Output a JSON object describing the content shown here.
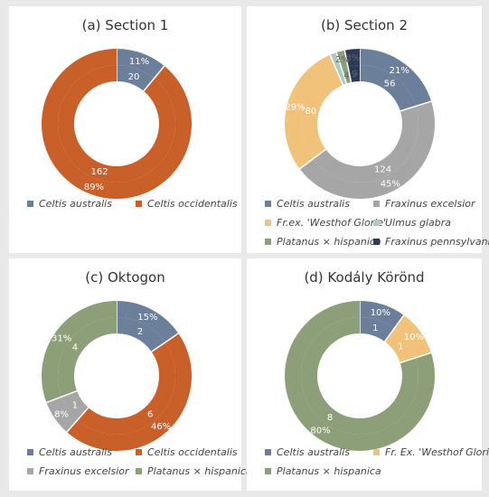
{
  "colors": {
    "Celtis australis": "#6b7f9a",
    "Celtis occidentalis": "#c95f29",
    "Fraxinus excelsior": "#a6a6a6",
    "Fr.ex. 'Westhof Glorie'": "#f0c27a",
    "Fr. Ex. 'Westhof Glorie'": "#f0c27a",
    "Ulmus glabra": "#a8cbc6",
    "Platanus × hispanica": "#8c9f78",
    "Fraxinus pennsylvanica": "#2c3a5a"
  },
  "chart_data": [
    {
      "type": "pie",
      "title": "(a) Section 1",
      "outer_labels": [
        "11%",
        "89%"
      ],
      "inner_labels": [
        "20",
        "162"
      ],
      "series": [
        {
          "name": "Celtis australis",
          "value": 20
        },
        {
          "name": "Celtis occidentalis",
          "value": 162
        }
      ],
      "legend": [
        "Celtis australis",
        "Celtis occidentalis"
      ]
    },
    {
      "type": "pie",
      "title": "(b) Section 2",
      "outer_labels": [
        "21%",
        "45%",
        "29%",
        "2%",
        "3%"
      ],
      "inner_labels": [
        "56",
        "124",
        "80",
        "4",
        "9"
      ],
      "series": [
        {
          "name": "Celtis australis",
          "value": 56
        },
        {
          "name": "Fraxinus excelsior",
          "value": 124
        },
        {
          "name": "Fr.ex. 'Westhof Glorie'",
          "value": 80
        },
        {
          "name": "Ulmus glabra",
          "value": 4
        },
        {
          "name": "Platanus × hispanica",
          "value": 5
        },
        {
          "name": "Fraxinus pennsylvanica",
          "value": 9
        }
      ],
      "legend": [
        "Celtis australis",
        "Fraxinus excelsior",
        "Fr.ex. 'Westhof Glorie'",
        "Ulmus glabra",
        "Platanus × hispanica",
        "Fraxinus pennsylvanica"
      ]
    },
    {
      "type": "pie",
      "title": "(c) Oktogon",
      "outer_labels": [
        "15%",
        "46%",
        "8%",
        "31%"
      ],
      "inner_labels": [
        "2",
        "6",
        "1",
        "4"
      ],
      "series": [
        {
          "name": "Celtis australis",
          "value": 2
        },
        {
          "name": "Celtis occidentalis",
          "value": 6
        },
        {
          "name": "Fraxinus excelsior",
          "value": 1
        },
        {
          "name": "Platanus × hispanica",
          "value": 4
        }
      ],
      "legend": [
        "Celtis australis",
        "Celtis occidentalis",
        "Fraxinus excelsior",
        "Platanus × hispanica"
      ]
    },
    {
      "type": "pie",
      "title": "(d) Kodály Körönd",
      "outer_labels": [
        "10%",
        "10%",
        "80%"
      ],
      "inner_labels": [
        "1",
        "1",
        "8"
      ],
      "series": [
        {
          "name": "Celtis australis",
          "value": 1
        },
        {
          "name": "Fr. Ex. 'Westhof Glorie'",
          "value": 1
        },
        {
          "name": "Platanus × hispanica",
          "value": 8
        }
      ],
      "legend": [
        "Celtis australis",
        "Fr. Ex. 'Westhof Glorie'",
        "Platanus × hispanica"
      ]
    }
  ]
}
